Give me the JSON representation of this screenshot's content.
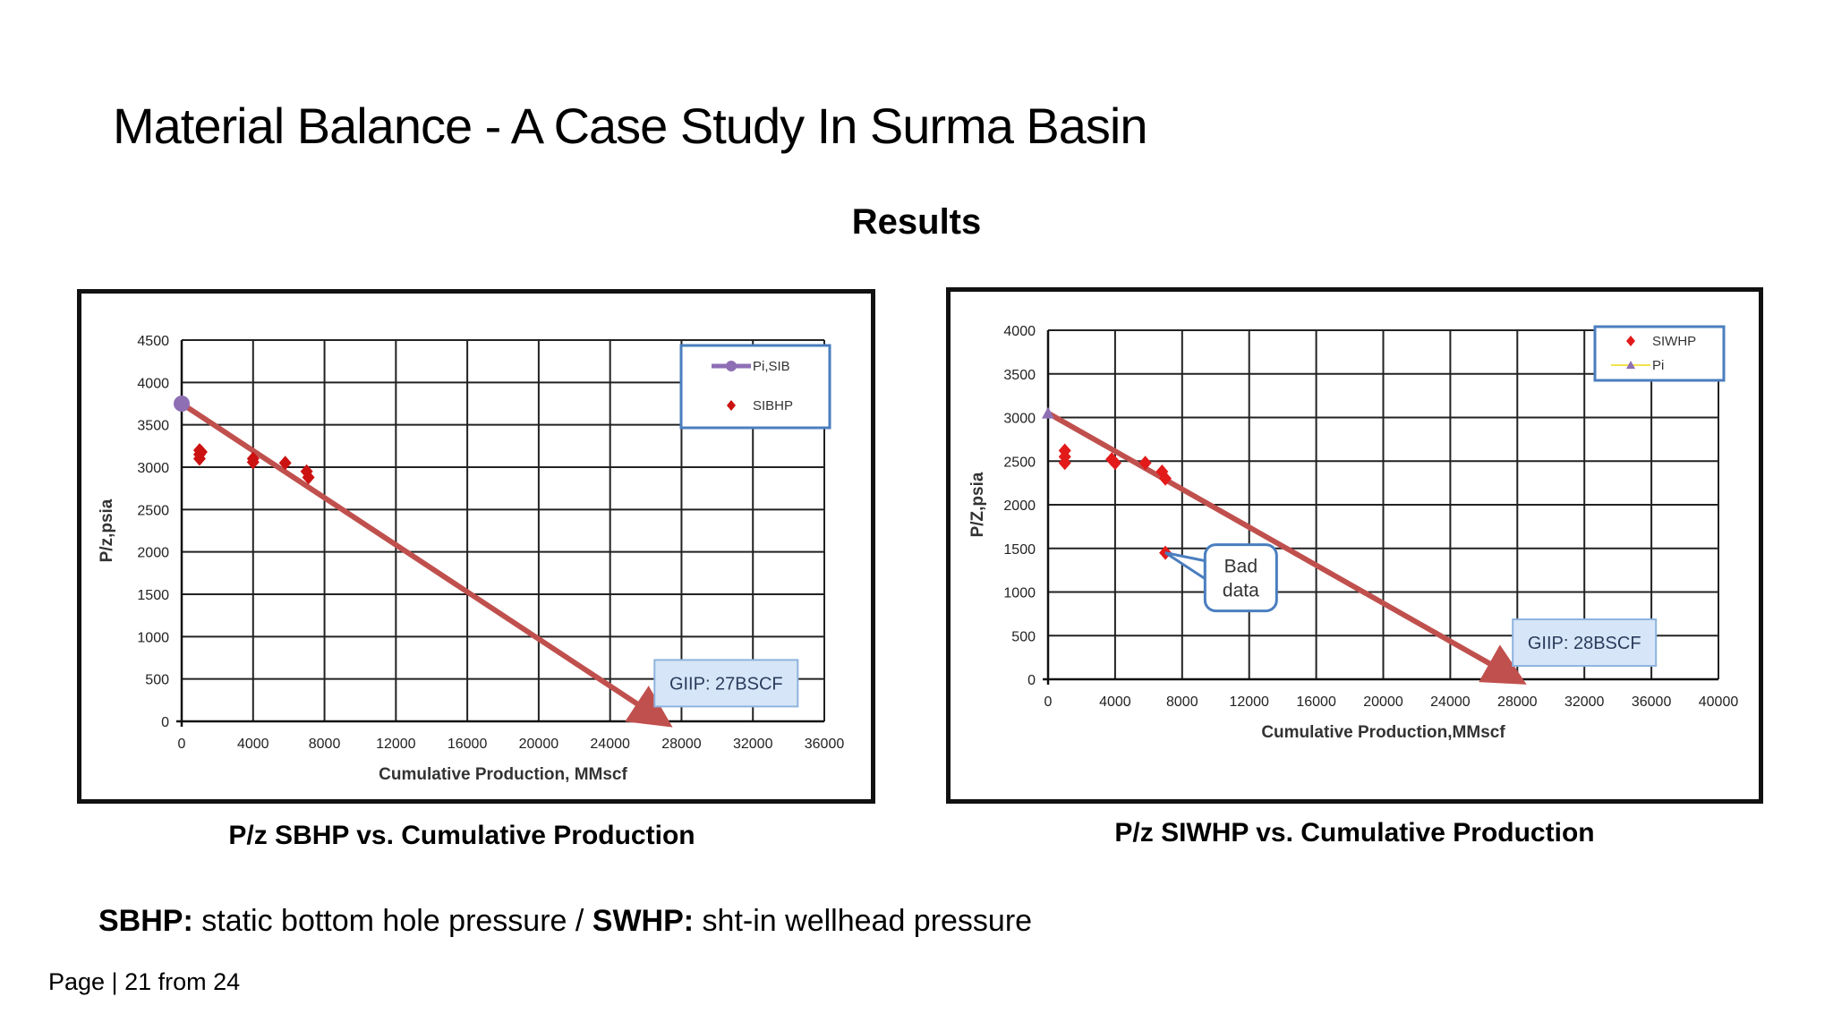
{
  "slide": {
    "title": "Material Balance - A Case Study In Surma Basin",
    "subtitle": "Results",
    "caption_left": "P/z SBHP vs. Cumulative Production",
    "caption_right": "P/z SIWHP vs. Cumulative Production",
    "footnote": {
      "term1": "SBHP:",
      "def1": " static bottom hole pressure / ",
      "term2": "SWHP:",
      "def2": " sht-in wellhead pressure"
    },
    "page": "Page | 21 from 24"
  },
  "chart_data": [
    {
      "type": "scatter",
      "title": "",
      "xlabel": "Cumulative Production, MMscf",
      "ylabel": "P/z,psia",
      "xlim": [
        0,
        36000
      ],
      "ylim": [
        0,
        4500
      ],
      "x_ticks": [
        0,
        4000,
        8000,
        12000,
        16000,
        20000,
        24000,
        28000,
        32000,
        36000
      ],
      "y_ticks": [
        0,
        500,
        1000,
        1500,
        2000,
        2500,
        3000,
        3500,
        4000,
        4500
      ],
      "grid": true,
      "legend_position": "top-right",
      "series": [
        {
          "name": "Pi,SIB",
          "marker": "circle",
          "color": "#8e6fb4",
          "points": [
            [
              0,
              3750
            ]
          ]
        },
        {
          "name": "SIBHP",
          "marker": "diamond",
          "color": "#cc1111",
          "points": [
            [
              1000,
              3200
            ],
            [
              1000,
              3150
            ],
            [
              1000,
              3100
            ],
            [
              1100,
              3180
            ],
            [
              4000,
              3100
            ],
            [
              4000,
              3060
            ],
            [
              5800,
              3050
            ],
            [
              7000,
              2950
            ],
            [
              7100,
              2880
            ]
          ]
        }
      ],
      "trend_arrow": {
        "from": [
          0,
          3750
        ],
        "to": [
          27000,
          0
        ],
        "color": "#c0504d"
      },
      "annotations": [
        {
          "text": "GIIP: 27BSCF",
          "x": 30500,
          "y": 450
        }
      ]
    },
    {
      "type": "scatter",
      "title": "",
      "xlabel": "Cumulative Production,MMscf",
      "ylabel": "P/Z,psia",
      "xlim": [
        0,
        40000
      ],
      "ylim": [
        0,
        4000
      ],
      "x_ticks": [
        0,
        4000,
        8000,
        12000,
        16000,
        20000,
        24000,
        28000,
        32000,
        36000,
        40000
      ],
      "y_ticks": [
        0,
        500,
        1000,
        1500,
        2000,
        2500,
        3000,
        3500,
        4000
      ],
      "grid": true,
      "legend_position": "top-right",
      "series": [
        {
          "name": "SIWHP",
          "marker": "diamond",
          "color": "#e31a1a",
          "points": [
            [
              1000,
              2620
            ],
            [
              1000,
              2550
            ],
            [
              1000,
              2480
            ],
            [
              3800,
              2520
            ],
            [
              4000,
              2480
            ],
            [
              5800,
              2480
            ],
            [
              6800,
              2380
            ],
            [
              7000,
              2300
            ],
            [
              7000,
              1450
            ]
          ]
        },
        {
          "name": "Pi",
          "marker": "triangle",
          "color": "#8e6fb4",
          "points": [
            [
              0,
              3050
            ]
          ]
        }
      ],
      "trend_arrow": {
        "from": [
          0,
          3050
        ],
        "to": [
          28000,
          0
        ],
        "color": "#c0504d"
      },
      "annotations": [
        {
          "text": "GIIP: 28BSCF",
          "x": 32000,
          "y": 420
        },
        {
          "text": "Bad data",
          "x": 11500,
          "y": 1050,
          "points_to": [
            7000,
            1450
          ]
        }
      ]
    }
  ]
}
